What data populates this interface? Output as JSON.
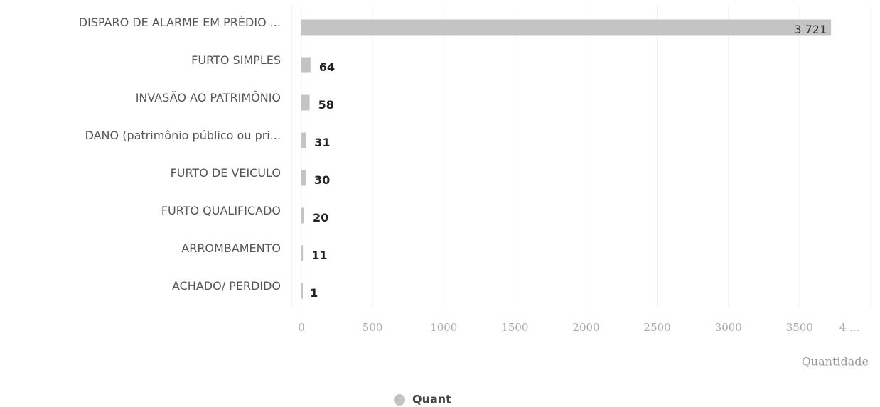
{
  "chart_data": {
    "type": "hbar",
    "categories": [
      "DISPARO DE ALARME EM PRÉDIO ...",
      "FURTO SIMPLES",
      "INVASÃO AO PATRIMÔNIO",
      "DANO (patrimônio público ou pri...",
      "FURTO DE VEICULO",
      "FURTO QUALIFICADO",
      "ARROMBAMENTO",
      "ACHADO/ PERDIDO"
    ],
    "series": [
      {
        "name": "Quant",
        "color": "#c4c4c4",
        "values": [
          3721,
          64,
          58,
          31,
          30,
          20,
          11,
          1
        ],
        "value_labels": [
          "3 721",
          "64",
          "58",
          "31",
          "30",
          "20",
          "11",
          "1"
        ]
      }
    ],
    "xlim": [
      0,
      4000
    ],
    "xticks": [
      0,
      500,
      1000,
      1500,
      2000,
      2500,
      3000,
      3500,
      {
        "value": 4000,
        "label": "4 ..."
      }
    ],
    "xlabel": "Quantidade",
    "grid": true
  }
}
